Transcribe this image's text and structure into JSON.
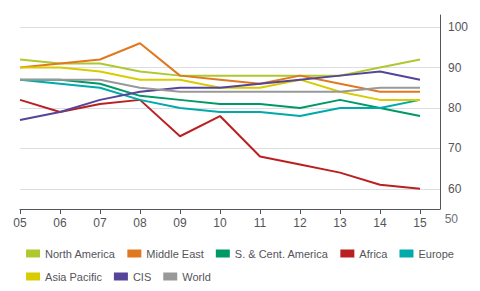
{
  "chart_data": {
    "type": "line",
    "x": [
      5,
      6,
      7,
      8,
      9,
      10,
      11,
      12,
      13,
      14,
      15
    ],
    "series": [
      {
        "name": "North America",
        "color": "#b0c830",
        "values": [
          92,
          91,
          91,
          89,
          88,
          88,
          88,
          88,
          88,
          90,
          92
        ]
      },
      {
        "name": "Middle East",
        "color": "#e07820",
        "values": [
          90,
          91,
          92,
          96,
          88,
          87,
          86,
          88,
          86,
          84,
          84
        ]
      },
      {
        "name": "S. & Cent. America",
        "color": "#009966",
        "values": [
          87,
          87,
          86,
          83,
          82,
          81,
          81,
          80,
          82,
          80,
          78
        ]
      },
      {
        "name": "Africa",
        "color": "#bb2020",
        "values": [
          82,
          79,
          81,
          82,
          73,
          78,
          68,
          66,
          64,
          61,
          60
        ]
      },
      {
        "name": "Europe",
        "color": "#00aaaa",
        "values": [
          87,
          86,
          85,
          82,
          80,
          79,
          79,
          78,
          80,
          80,
          82
        ]
      },
      {
        "name": "Asia Pacific",
        "color": "#d8cc00",
        "values": [
          90,
          90,
          89,
          87,
          87,
          85,
          85,
          87,
          84,
          82,
          82
        ]
      },
      {
        "name": "CIS",
        "color": "#554499",
        "values": [
          77,
          79,
          82,
          84,
          85,
          85,
          86,
          87,
          88,
          89,
          87
        ]
      },
      {
        "name": "World",
        "color": "#999999",
        "values": [
          87,
          87,
          87,
          85,
          84,
          84,
          84,
          84,
          84,
          85,
          85
        ]
      }
    ],
    "xlim": [
      5,
      15.5
    ],
    "xticks": [
      {
        "value": 5,
        "label": "05"
      },
      {
        "value": 6,
        "label": "06"
      },
      {
        "value": 7,
        "label": "07"
      },
      {
        "value": 8,
        "label": "08"
      },
      {
        "value": 9,
        "label": "09"
      },
      {
        "value": 10,
        "label": "10"
      },
      {
        "value": 11,
        "label": "11"
      },
      {
        "value": 12,
        "label": "12"
      },
      {
        "value": 13,
        "label": "13"
      },
      {
        "value": 14,
        "label": "14"
      },
      {
        "value": 15,
        "label": "15"
      }
    ],
    "ylim": [
      55,
      103
    ],
    "yticks": [
      60,
      70,
      80,
      90,
      100
    ],
    "grid": true,
    "legend": "bottom",
    "annotations": [
      "50"
    ]
  }
}
